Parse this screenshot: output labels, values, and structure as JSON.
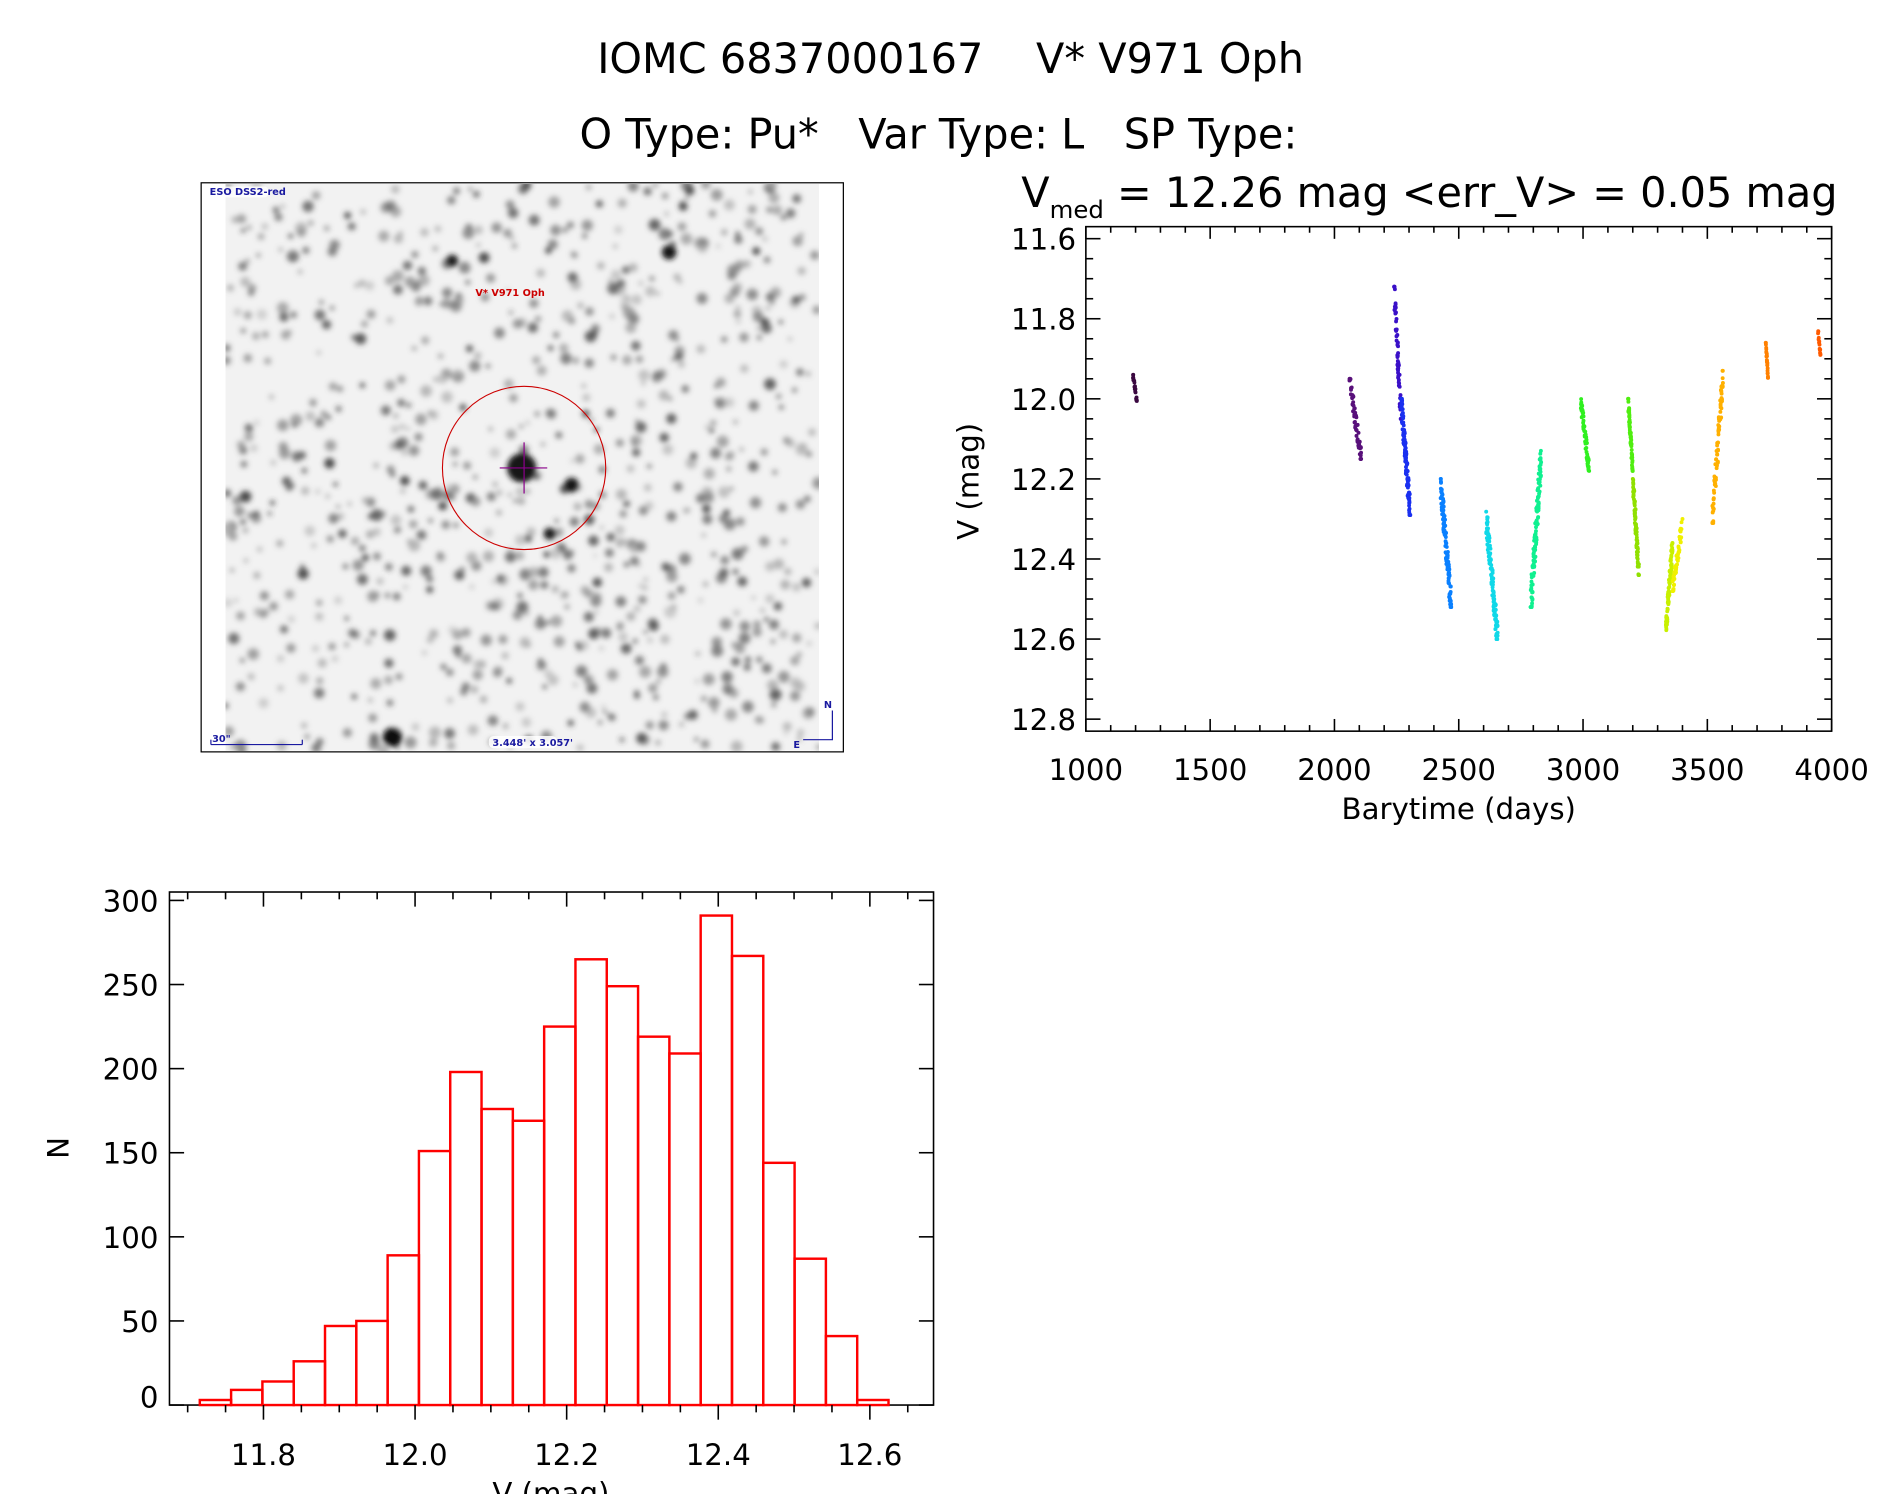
{
  "header": {
    "title_line1": "IOMC 6837000167    V* V971 Oph",
    "title_line2": "O Type: Pu*   Var Type: L   SP Type:"
  },
  "image_panel": {
    "survey_label": "ESO DSS2-red",
    "target_label": "V* V971 Oph",
    "scale_label": "30\"",
    "fov_label": "3.448' x 3.057'",
    "north_label": "N",
    "east_label": "E",
    "target_color": "#cc0000",
    "annotation_color": "#1a1aa0"
  },
  "chart_data": [
    {
      "type": "scatter",
      "title_main": "V",
      "title_sub": "med",
      "title_rest": " = 12.26 mag <err_V> = 0.05 mag",
      "xlabel": "Barytime (days)",
      "ylabel": "V (mag)",
      "xlim": [
        1000,
        4000
      ],
      "ylim": [
        12.83,
        11.57
      ],
      "xticks": [
        "1000",
        "1500",
        "2000",
        "2500",
        "3000",
        "3500",
        "4000"
      ],
      "yticks": [
        "11.6",
        "11.8",
        "12.0",
        "12.2",
        "12.4",
        "12.6",
        "12.8"
      ],
      "grid": false,
      "segments": [
        {
          "t": [
            1190,
            1205
          ],
          "v": [
            11.94,
            12.01
          ],
          "n": 20,
          "color": "#3a0840"
        },
        {
          "t": [
            2060,
            2108
          ],
          "v": [
            11.95,
            12.15
          ],
          "n": 60,
          "color": "#58107a"
        },
        {
          "t": [
            2240,
            2268
          ],
          "v": [
            11.72,
            12.05
          ],
          "n": 60,
          "color": "#3a10c8"
        },
        {
          "t": [
            2268,
            2305
          ],
          "v": [
            12.0,
            12.29
          ],
          "n": 120,
          "color": "#1a30f0"
        },
        {
          "t": [
            2426,
            2470
          ],
          "v": [
            12.2,
            12.52
          ],
          "n": 110,
          "color": "#0a80ff"
        },
        {
          "t": [
            2608,
            2657
          ],
          "v": [
            12.28,
            12.6
          ],
          "n": 110,
          "color": "#10d8e8"
        },
        {
          "t": [
            2789,
            2833
          ],
          "v": [
            12.52,
            12.13
          ],
          "n": 110,
          "color": "#10f090"
        },
        {
          "t": [
            2990,
            3025
          ],
          "v": [
            12.0,
            12.18
          ],
          "n": 60,
          "color": "#30f020"
        },
        {
          "t": [
            3181,
            3200
          ],
          "v": [
            12.0,
            12.18
          ],
          "n": 60,
          "color": "#50ee10"
        },
        {
          "t": [
            3200,
            3225
          ],
          "v": [
            12.2,
            12.44
          ],
          "n": 80,
          "color": "#90e000"
        },
        {
          "t": [
            3333,
            3360
          ],
          "v": [
            12.58,
            12.36
          ],
          "n": 80,
          "color": "#c8f000"
        },
        {
          "t": [
            3360,
            3402
          ],
          "v": [
            12.48,
            12.3
          ],
          "n": 60,
          "color": "#f0f000"
        },
        {
          "t": [
            3520,
            3564
          ],
          "v": [
            12.31,
            11.93
          ],
          "n": 80,
          "color": "#ffb000"
        },
        {
          "t": [
            3735,
            3745
          ],
          "v": [
            11.86,
            11.95
          ],
          "n": 25,
          "color": "#ff8000"
        },
        {
          "t": [
            3945,
            3955
          ],
          "v": [
            11.83,
            11.89
          ],
          "n": 15,
          "color": "#ff5a00"
        }
      ]
    },
    {
      "type": "bar",
      "histogram": true,
      "xlabel": "V (mag)",
      "ylabel": "N",
      "xlim": [
        11.676,
        12.684
      ],
      "ylim": [
        0,
        305
      ],
      "xticks": [
        "11.8",
        "12.0",
        "12.2",
        "12.4",
        "12.6"
      ],
      "yticks": [
        "0",
        "50",
        "100",
        "150",
        "200",
        "250",
        "300"
      ],
      "bin_start": 11.716,
      "bin_width": 0.0413,
      "values": [
        3,
        9,
        14,
        26,
        47,
        50,
        89,
        151,
        198,
        176,
        169,
        225,
        265,
        249,
        219,
        209,
        291,
        267,
        144,
        87,
        41,
        3
      ],
      "color": "#ff0000"
    }
  ]
}
